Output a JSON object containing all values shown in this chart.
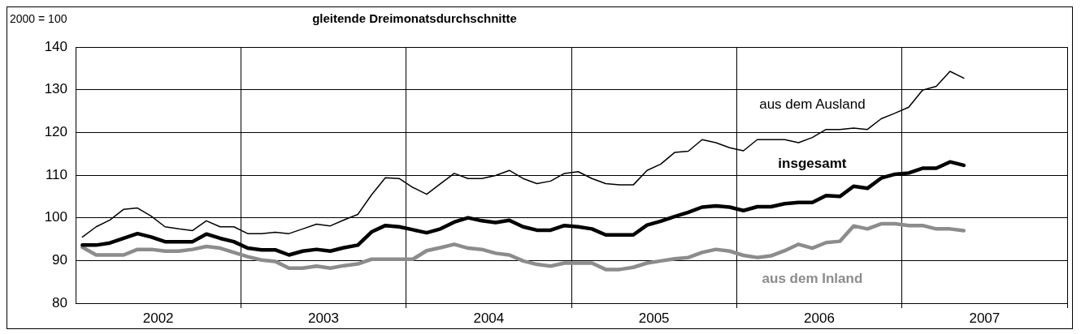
{
  "chart_data": {
    "type": "line",
    "title": "gleitende Dreimonatsdurchschnitte",
    "ylabel": "2000 = 100",
    "x": [
      "2002-01-16",
      "2002-02-16",
      "2002-03-16",
      "2002-04-16",
      "2002-05-16",
      "2002-06-16",
      "2002-07-16",
      "2002-08-16",
      "2002-09-16",
      "2002-10-16",
      "2002-11-16",
      "2002-12-16",
      "2003-01-16",
      "2003-02-16",
      "2003-03-16",
      "2003-04-16",
      "2003-05-16",
      "2003-06-16",
      "2003-07-16",
      "2003-08-16",
      "2003-09-16",
      "2003-10-16",
      "2003-11-16",
      "2003-12-16",
      "2004-01-16",
      "2004-02-16",
      "2004-03-16",
      "2004-04-16",
      "2004-05-16",
      "2004-06-16",
      "2004-07-16",
      "2004-08-16",
      "2004-09-16",
      "2004-10-16",
      "2004-11-16",
      "2004-12-16",
      "2005-01-16",
      "2005-02-16",
      "2005-03-16",
      "2005-04-16",
      "2005-05-16",
      "2005-06-16",
      "2005-07-16",
      "2005-08-16",
      "2005-09-16",
      "2005-10-16",
      "2005-11-16",
      "2005-12-16",
      "2006-01-16",
      "2006-02-16",
      "2006-03-16",
      "2006-04-16",
      "2006-05-16",
      "2006-06-16",
      "2006-07-16",
      "2006-08-16",
      "2006-09-16",
      "2006-10-16",
      "2006-11-16",
      "2006-12-16",
      "2007-01-16",
      "2007-02-16",
      "2007-03-16",
      "2007-04-16",
      "2007-05-16"
    ],
    "series": [
      {
        "name": "aus dem Ausland",
        "color": "#000000",
        "values": [
          95.5,
          97.9,
          99.5,
          102.0,
          102.3,
          100.4,
          97.9,
          97.4,
          97.0,
          99.3,
          97.9,
          97.9,
          96.3,
          96.3,
          96.6,
          96.3,
          97.4,
          98.5,
          98.1,
          99.5,
          100.8,
          105.4,
          109.4,
          109.2,
          107.1,
          105.5,
          108.0,
          110.4,
          109.2,
          109.2,
          109.9,
          111.1,
          109.2,
          108.0,
          108.6,
          110.4,
          110.8,
          109.2,
          108.0,
          107.7,
          107.7,
          111.1,
          112.6,
          115.3,
          115.6,
          118.3,
          117.6,
          116.4,
          115.7,
          118.3,
          118.3,
          118.3,
          117.6,
          118.8,
          120.7,
          120.7,
          121.0,
          120.7,
          123.2,
          124.5,
          125.9,
          129.9,
          130.8,
          134.3,
          132.7
        ]
      },
      {
        "name": "insgesamt",
        "color": "#000000",
        "values": [
          93.6,
          93.6,
          94.1,
          95.2,
          96.3,
          95.5,
          94.4,
          94.4,
          94.4,
          96.2,
          95.2,
          94.4,
          92.9,
          92.5,
          92.5,
          91.3,
          92.2,
          92.6,
          92.2,
          93.0,
          93.6,
          96.7,
          98.2,
          97.9,
          97.2,
          96.5,
          97.4,
          99.0,
          100.0,
          99.3,
          98.9,
          99.4,
          97.9,
          97.1,
          97.1,
          98.2,
          97.9,
          97.4,
          96.0,
          96.0,
          96.0,
          98.3,
          99.2,
          100.3,
          101.3,
          102.5,
          102.8,
          102.5,
          101.7,
          102.6,
          102.6,
          103.3,
          103.6,
          103.6,
          105.2,
          105.0,
          107.4,
          106.9,
          109.3,
          110.2,
          110.5,
          111.6,
          111.6,
          113.1,
          112.3
        ]
      },
      {
        "name": "aus dem Inland",
        "color": "#8c8c8c",
        "values": [
          93.1,
          91.3,
          91.3,
          91.3,
          92.6,
          92.6,
          92.2,
          92.2,
          92.6,
          93.3,
          92.9,
          91.9,
          90.9,
          90.1,
          89.8,
          88.2,
          88.2,
          88.7,
          88.2,
          88.8,
          89.2,
          90.3,
          90.3,
          90.3,
          90.3,
          92.3,
          93.0,
          93.8,
          92.9,
          92.6,
          91.7,
          91.3,
          89.9,
          89.1,
          88.7,
          89.4,
          89.4,
          89.4,
          87.9,
          87.9,
          88.4,
          89.4,
          89.9,
          90.4,
          90.7,
          91.9,
          92.6,
          92.2,
          91.2,
          90.7,
          91.1,
          92.3,
          93.8,
          92.9,
          94.2,
          94.5,
          98.1,
          97.4,
          98.6,
          98.6,
          98.2,
          98.2,
          97.4,
          97.4,
          97.0
        ]
      }
    ],
    "xlim": [
      "2002-01-01",
      "2008-01-01"
    ],
    "xticks": [
      {
        "value": "2002-07-01",
        "label": "2002"
      },
      {
        "value": "2003-01-01",
        "label": null
      },
      {
        "value": "2003-07-01",
        "label": "2003"
      },
      {
        "value": "2004-01-01",
        "label": null
      },
      {
        "value": "2004-07-01",
        "label": "2004"
      },
      {
        "value": "2005-01-01",
        "label": null
      },
      {
        "value": "2005-07-01",
        "label": "2005"
      },
      {
        "value": "2006-01-01",
        "label": null
      },
      {
        "value": "2006-07-01",
        "label": "2006"
      },
      {
        "value": "2007-01-01",
        "label": null
      },
      {
        "value": "2007-07-01",
        "label": "2007"
      },
      {
        "value": "2008-01-01",
        "label": null
      }
    ],
    "ylim": [
      80,
      140
    ],
    "yticks": [
      80,
      90,
      100,
      110,
      120,
      130,
      140
    ],
    "grid": true,
    "marker": "none",
    "line_style": "solid"
  }
}
